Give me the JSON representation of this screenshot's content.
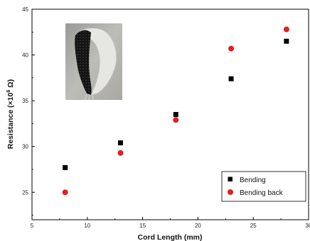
{
  "chart_data": {
    "type": "scatter",
    "xlabel": "Cord Length (mm)",
    "ylabel": "Resistance (×10",
    "ylabel_sup": "6",
    "ylabel_tail": " Ω)",
    "xlim": [
      5,
      30
    ],
    "ylim": [
      22,
      45
    ],
    "x_ticks": [
      5,
      10,
      15,
      20,
      25,
      30
    ],
    "y_ticks": [
      25,
      30,
      35,
      40,
      45
    ],
    "x_tick_labels": [
      "5",
      "10",
      "15",
      "20",
      "25",
      "30"
    ],
    "y_tick_labels": [
      "25",
      "30",
      "35",
      "40",
      "45"
    ],
    "grid": false,
    "legend_position": "bottom-right",
    "inset_image": "photo of black knitted fabric sensor bent into a curved shape",
    "series": [
      {
        "name": "Bending",
        "marker": "square",
        "color": "#000000",
        "points": [
          [
            8,
            27.7
          ],
          [
            13,
            30.4
          ],
          [
            18,
            33.5
          ],
          [
            23,
            37.4
          ],
          [
            28,
            41.5
          ]
        ]
      },
      {
        "name": "Bending back",
        "marker": "circle",
        "color": "#e02020",
        "points": [
          [
            8,
            25.0
          ],
          [
            13,
            29.3
          ],
          [
            18,
            32.9
          ],
          [
            23,
            40.7
          ],
          [
            28,
            42.8
          ]
        ]
      }
    ]
  }
}
